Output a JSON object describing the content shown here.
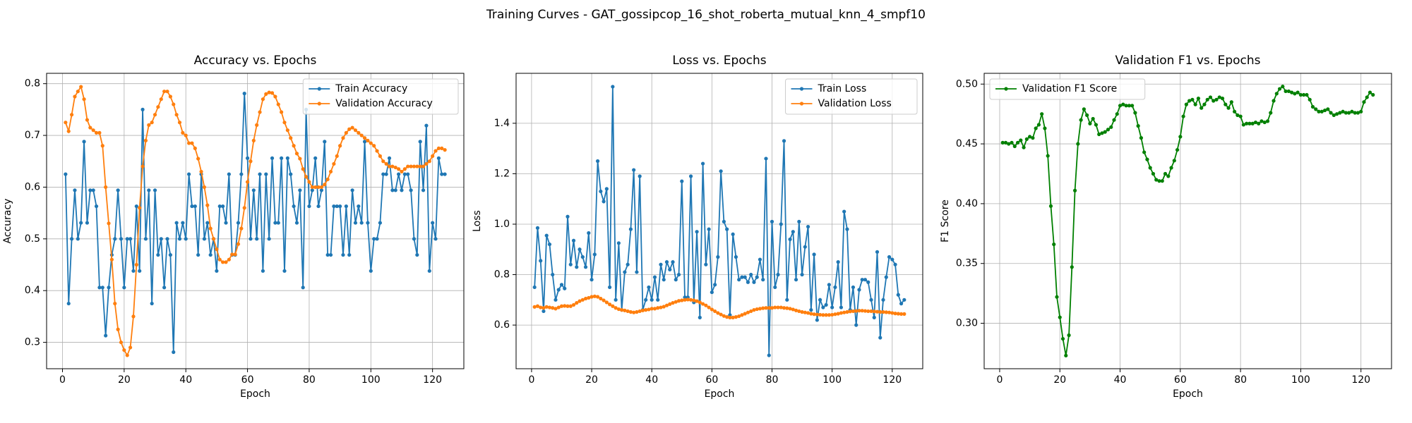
{
  "title": "Training Curves - GAT_gossipcop_16_shot_roberta_mutual_knn_4_smpf10",
  "chart_data": [
    {
      "type": "line",
      "title": "Accuracy vs. Epochs",
      "xlabel": "Epoch",
      "ylabel": "Accuracy",
      "x": [
        1,
        2,
        3,
        4,
        5,
        6,
        7,
        8,
        9,
        10,
        11,
        12,
        13,
        14,
        15,
        16,
        17,
        18,
        19,
        20,
        21,
        22,
        23,
        24,
        25,
        26,
        27,
        28,
        29,
        30,
        31,
        32,
        33,
        34,
        35,
        36,
        37,
        38,
        39,
        40,
        41,
        42,
        43,
        44,
        45,
        46,
        47,
        48,
        49,
        50,
        51,
        52,
        53,
        54,
        55,
        56,
        57,
        58,
        59,
        60,
        61,
        62,
        63,
        64,
        65,
        66,
        67,
        68,
        69,
        70,
        71,
        72,
        73,
        74,
        75,
        76,
        77,
        78,
        79,
        80,
        81,
        82,
        83,
        84,
        85,
        86,
        87,
        88,
        89,
        90,
        91,
        92,
        93,
        94,
        95,
        96,
        97,
        98,
        99,
        100,
        101,
        102,
        103,
        104,
        105,
        106,
        107,
        108,
        109,
        110,
        111,
        112,
        113,
        114,
        115,
        116,
        117,
        118,
        119,
        120,
        121,
        122,
        123,
        124
      ],
      "series": [
        {
          "name": "Train Accuracy",
          "color": "#1f77b4",
          "values": [
            0.625,
            0.375,
            0.5,
            0.594,
            0.5,
            0.531,
            0.688,
            0.531,
            0.594,
            0.594,
            0.563,
            0.406,
            0.406,
            0.313,
            0.406,
            0.469,
            0.5,
            0.594,
            0.5,
            0.406,
            0.5,
            0.5,
            0.438,
            0.563,
            0.438,
            0.75,
            0.5,
            0.594,
            0.375,
            0.594,
            0.469,
            0.5,
            0.406,
            0.5,
            0.469,
            0.281,
            0.531,
            0.5,
            0.531,
            0.5,
            0.625,
            0.563,
            0.563,
            0.469,
            0.625,
            0.5,
            0.531,
            0.469,
            0.5,
            0.438,
            0.563,
            0.563,
            0.531,
            0.625,
            0.469,
            0.469,
            0.531,
            0.625,
            0.781,
            0.656,
            0.5,
            0.594,
            0.5,
            0.625,
            0.438,
            0.625,
            0.5,
            0.656,
            0.531,
            0.531,
            0.656,
            0.438,
            0.656,
            0.625,
            0.563,
            0.531,
            0.594,
            0.406,
            0.75,
            0.563,
            0.594,
            0.656,
            0.563,
            0.594,
            0.688,
            0.469,
            0.469,
            0.563,
            0.563,
            0.563,
            0.469,
            0.563,
            0.469,
            0.594,
            0.531,
            0.563,
            0.531,
            0.688,
            0.531,
            0.438,
            0.5,
            0.5,
            0.531,
            0.625,
            0.625,
            0.656,
            0.594,
            0.594,
            0.625,
            0.594,
            0.625,
            0.625,
            0.594,
            0.5,
            0.469,
            0.688,
            0.594,
            0.719,
            0.438,
            0.531,
            0.5,
            0.656,
            0.625,
            0.625
          ]
        },
        {
          "name": "Validation Accuracy",
          "color": "#ff7f0e",
          "values": [
            0.725,
            0.708,
            0.74,
            0.775,
            0.785,
            0.794,
            0.77,
            0.73,
            0.715,
            0.71,
            0.705,
            0.705,
            0.68,
            0.6,
            0.53,
            0.46,
            0.375,
            0.325,
            0.3,
            0.285,
            0.275,
            0.29,
            0.35,
            0.45,
            0.56,
            0.64,
            0.69,
            0.72,
            0.725,
            0.74,
            0.755,
            0.77,
            0.785,
            0.785,
            0.775,
            0.76,
            0.74,
            0.725,
            0.705,
            0.7,
            0.685,
            0.685,
            0.675,
            0.655,
            0.63,
            0.6,
            0.565,
            0.52,
            0.5,
            0.48,
            0.46,
            0.455,
            0.455,
            0.46,
            0.47,
            0.47,
            0.49,
            0.52,
            0.56,
            0.61,
            0.65,
            0.69,
            0.72,
            0.745,
            0.77,
            0.78,
            0.783,
            0.782,
            0.775,
            0.76,
            0.745,
            0.725,
            0.71,
            0.695,
            0.68,
            0.665,
            0.655,
            0.635,
            0.62,
            0.61,
            0.6,
            0.6,
            0.6,
            0.6,
            0.605,
            0.615,
            0.63,
            0.645,
            0.66,
            0.68,
            0.695,
            0.705,
            0.712,
            0.715,
            0.71,
            0.705,
            0.7,
            0.695,
            0.69,
            0.685,
            0.68,
            0.67,
            0.66,
            0.65,
            0.645,
            0.64,
            0.64,
            0.638,
            0.635,
            0.63,
            0.635,
            0.64,
            0.64,
            0.64,
            0.64,
            0.64,
            0.64,
            0.645,
            0.65,
            0.66,
            0.67,
            0.675,
            0.675,
            0.672
          ]
        }
      ],
      "xlim": [
        -5.15,
        130.15
      ],
      "ylim": [
        0.249,
        0.82
      ],
      "xticks": [
        0,
        20,
        40,
        60,
        80,
        100,
        120
      ],
      "yticks": [
        0.3,
        0.4,
        0.5,
        0.6,
        0.7,
        0.8
      ],
      "grid": true,
      "legend": "upper right"
    },
    {
      "type": "line",
      "title": "Loss vs. Epochs",
      "xlabel": "Epoch",
      "ylabel": "Loss",
      "x": [
        1,
        2,
        3,
        4,
        5,
        6,
        7,
        8,
        9,
        10,
        11,
        12,
        13,
        14,
        15,
        16,
        17,
        18,
        19,
        20,
        21,
        22,
        23,
        24,
        25,
        26,
        27,
        28,
        29,
        30,
        31,
        32,
        33,
        34,
        35,
        36,
        37,
        38,
        39,
        40,
        41,
        42,
        43,
        44,
        45,
        46,
        47,
        48,
        49,
        50,
        51,
        52,
        53,
        54,
        55,
        56,
        57,
        58,
        59,
        60,
        61,
        62,
        63,
        64,
        65,
        66,
        67,
        68,
        69,
        70,
        71,
        72,
        73,
        74,
        75,
        76,
        77,
        78,
        79,
        80,
        81,
        82,
        83,
        84,
        85,
        86,
        87,
        88,
        89,
        90,
        91,
        92,
        93,
        94,
        95,
        96,
        97,
        98,
        99,
        100,
        101,
        102,
        103,
        104,
        105,
        106,
        107,
        108,
        109,
        110,
        111,
        112,
        113,
        114,
        115,
        116,
        117,
        118,
        119,
        120,
        121,
        122,
        123,
        124
      ],
      "series": [
        {
          "name": "Train Loss",
          "color": "#1f77b4",
          "values": [
            0.75,
            0.985,
            0.855,
            0.655,
            0.955,
            0.92,
            0.8,
            0.7,
            0.74,
            0.76,
            0.745,
            1.03,
            0.84,
            0.935,
            0.83,
            0.9,
            0.87,
            0.83,
            0.965,
            0.78,
            0.88,
            1.25,
            1.13,
            1.09,
            1.14,
            0.75,
            1.545,
            0.7,
            0.925,
            0.66,
            0.81,
            0.84,
            0.98,
            1.215,
            0.81,
            1.19,
            0.66,
            0.7,
            0.75,
            0.7,
            0.79,
            0.7,
            0.84,
            0.78,
            0.85,
            0.82,
            0.85,
            0.78,
            0.8,
            1.17,
            0.71,
            0.71,
            1.19,
            0.69,
            0.97,
            0.63,
            1.24,
            0.84,
            0.98,
            0.73,
            0.76,
            0.87,
            1.21,
            1.01,
            0.98,
            0.64,
            0.96,
            0.87,
            0.78,
            0.79,
            0.79,
            0.77,
            0.8,
            0.77,
            0.79,
            0.86,
            0.78,
            1.26,
            0.48,
            1.01,
            0.75,
            0.8,
            1.0,
            1.33,
            0.7,
            0.94,
            0.97,
            0.78,
            1.01,
            0.8,
            0.91,
            0.99,
            0.66,
            0.88,
            0.62,
            0.7,
            0.67,
            0.68,
            0.76,
            0.67,
            0.75,
            0.85,
            0.67,
            1.05,
            0.98,
            0.66,
            0.75,
            0.6,
            0.74,
            0.78,
            0.78,
            0.77,
            0.7,
            0.63,
            0.89,
            0.55,
            0.7,
            0.79,
            0.87,
            0.86,
            0.84,
            0.72,
            0.685,
            0.7
          ]
        },
        {
          "name": "Validation Loss",
          "color": "#ff7f0e",
          "values": [
            0.672,
            0.675,
            0.67,
            0.668,
            0.672,
            0.67,
            0.668,
            0.665,
            0.67,
            0.675,
            0.676,
            0.675,
            0.675,
            0.68,
            0.688,
            0.695,
            0.7,
            0.705,
            0.708,
            0.712,
            0.714,
            0.712,
            0.705,
            0.698,
            0.69,
            0.682,
            0.675,
            0.668,
            0.663,
            0.66,
            0.658,
            0.655,
            0.652,
            0.65,
            0.652,
            0.655,
            0.658,
            0.66,
            0.662,
            0.665,
            0.665,
            0.668,
            0.67,
            0.673,
            0.678,
            0.683,
            0.688,
            0.692,
            0.696,
            0.698,
            0.7,
            0.701,
            0.7,
            0.698,
            0.695,
            0.69,
            0.684,
            0.678,
            0.67,
            0.662,
            0.655,
            0.648,
            0.642,
            0.636,
            0.632,
            0.63,
            0.63,
            0.632,
            0.635,
            0.64,
            0.645,
            0.65,
            0.655,
            0.66,
            0.663,
            0.665,
            0.667,
            0.668,
            0.668,
            0.668,
            0.67,
            0.67,
            0.67,
            0.668,
            0.667,
            0.665,
            0.662,
            0.658,
            0.655,
            0.652,
            0.65,
            0.648,
            0.645,
            0.643,
            0.642,
            0.641,
            0.64,
            0.64,
            0.64,
            0.641,
            0.643,
            0.645,
            0.648,
            0.65,
            0.652,
            0.654,
            0.655,
            0.656,
            0.657,
            0.657,
            0.656,
            0.655,
            0.655,
            0.654,
            0.653,
            0.652,
            0.652,
            0.651,
            0.65,
            0.648,
            0.646,
            0.645,
            0.644,
            0.644
          ]
        }
      ],
      "xlim": [
        -5.15,
        130.15
      ],
      "ylim": [
        0.427,
        1.598
      ],
      "xticks": [
        0,
        20,
        40,
        60,
        80,
        100,
        120
      ],
      "yticks": [
        0.6,
        0.8,
        {
          "value": 1,
          "label": "1.0"
        },
        1.2,
        1.4
      ],
      "grid": true,
      "legend": "upper right"
    },
    {
      "type": "line",
      "title": "Validation F1 vs. Epochs",
      "xlabel": "Epoch",
      "ylabel": "F1 Score",
      "x": [
        1,
        2,
        3,
        4,
        5,
        6,
        7,
        8,
        9,
        10,
        11,
        12,
        13,
        14,
        15,
        16,
        17,
        18,
        19,
        20,
        21,
        22,
        23,
        24,
        25,
        26,
        27,
        28,
        29,
        30,
        31,
        32,
        33,
        34,
        35,
        36,
        37,
        38,
        39,
        40,
        41,
        42,
        43,
        44,
        45,
        46,
        47,
        48,
        49,
        50,
        51,
        52,
        53,
        54,
        55,
        56,
        57,
        58,
        59,
        60,
        61,
        62,
        63,
        64,
        65,
        66,
        67,
        68,
        69,
        70,
        71,
        72,
        73,
        74,
        75,
        76,
        77,
        78,
        79,
        80,
        81,
        82,
        83,
        84,
        85,
        86,
        87,
        88,
        89,
        90,
        91,
        92,
        93,
        94,
        95,
        96,
        97,
        98,
        99,
        100,
        101,
        102,
        103,
        104,
        105,
        106,
        107,
        108,
        109,
        110,
        111,
        112,
        113,
        114,
        115,
        116,
        117,
        118,
        119,
        120,
        121,
        122,
        123,
        124
      ],
      "series": [
        {
          "name": "Validation F1 Score",
          "color": "#008000",
          "values": [
            0.451,
            0.451,
            0.45,
            0.451,
            0.448,
            0.451,
            0.453,
            0.447,
            0.454,
            0.456,
            0.455,
            0.463,
            0.466,
            0.475,
            0.463,
            0.44,
            0.398,
            0.366,
            0.322,
            0.305,
            0.287,
            0.273,
            0.29,
            0.347,
            0.411,
            0.45,
            0.47,
            0.479,
            0.474,
            0.467,
            0.471,
            0.466,
            0.458,
            0.459,
            0.46,
            0.462,
            0.464,
            0.47,
            0.475,
            0.482,
            0.483,
            0.482,
            0.482,
            0.482,
            0.476,
            0.465,
            0.455,
            0.443,
            0.437,
            0.43,
            0.425,
            0.42,
            0.419,
            0.419,
            0.425,
            0.423,
            0.43,
            0.436,
            0.445,
            0.456,
            0.473,
            0.483,
            0.486,
            0.487,
            0.483,
            0.488,
            0.48,
            0.483,
            0.487,
            0.489,
            0.486,
            0.487,
            0.489,
            0.488,
            0.483,
            0.48,
            0.485,
            0.477,
            0.474,
            0.473,
            0.466,
            0.467,
            0.467,
            0.467,
            0.468,
            0.467,
            0.469,
            0.468,
            0.469,
            0.476,
            0.486,
            0.492,
            0.496,
            0.498,
            0.494,
            0.494,
            0.493,
            0.492,
            0.493,
            0.491,
            0.491,
            0.491,
            0.487,
            0.481,
            0.479,
            0.477,
            0.477,
            0.478,
            0.479,
            0.476,
            0.474,
            0.475,
            0.476,
            0.477,
            0.476,
            0.476,
            0.477,
            0.476,
            0.476,
            0.477,
            0.485,
            0.489,
            0.493,
            0.491
          ]
        }
      ],
      "xlim": [
        -5.15,
        130.15
      ],
      "ylim": [
        0.262,
        0.509
      ],
      "xticks": [
        0,
        20,
        40,
        60,
        80,
        100,
        120
      ],
      "yticks": [
        {
          "value": 0.3,
          "label": "0.30"
        },
        0.35,
        {
          "value": 0.4,
          "label": "0.40"
        },
        0.45,
        {
          "value": 0.5,
          "label": "0.50"
        }
      ],
      "grid": true,
      "legend": "upper left"
    }
  ]
}
